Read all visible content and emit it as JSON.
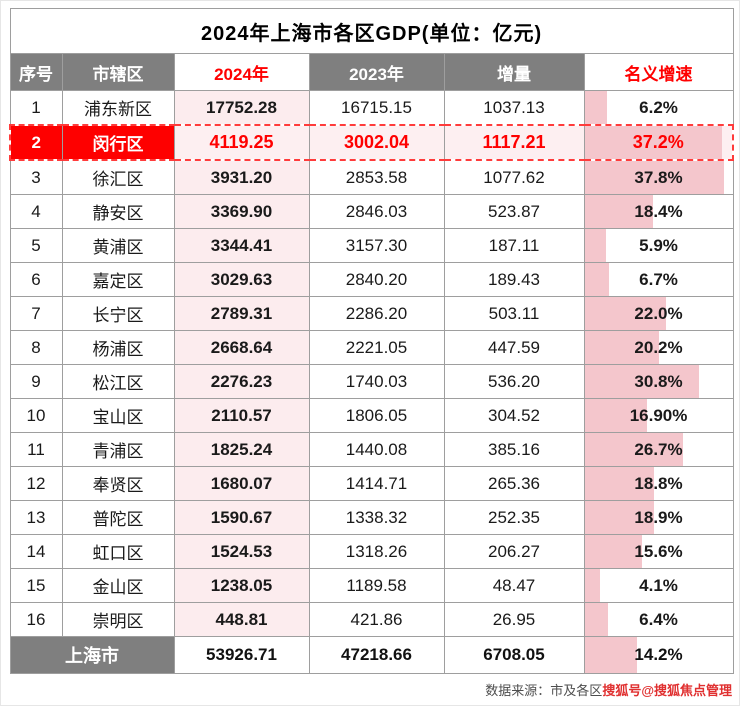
{
  "chart_data": {
    "type": "table",
    "title": "2024年上海市各区GDP(单位：亿元)",
    "columns": [
      "序号",
      "市辖区",
      "2024年",
      "2023年",
      "增量",
      "名义增速"
    ],
    "growth_axis_max": 40,
    "rows": [
      {
        "no": "1",
        "district": "浦东新区",
        "y2024": "17752.28",
        "y2023": "16715.15",
        "delta": "1037.13",
        "growth": "6.2%",
        "growth_value": 6.2,
        "highlight": false
      },
      {
        "no": "2",
        "district": "闵行区",
        "y2024": "4119.25",
        "y2023": "3002.04",
        "delta": "1117.21",
        "growth": "37.2%",
        "growth_value": 37.2,
        "highlight": true
      },
      {
        "no": "3",
        "district": "徐汇区",
        "y2024": "3931.20",
        "y2023": "2853.58",
        "delta": "1077.62",
        "growth": "37.8%",
        "growth_value": 37.8,
        "highlight": false
      },
      {
        "no": "4",
        "district": "静安区",
        "y2024": "3369.90",
        "y2023": "2846.03",
        "delta": "523.87",
        "growth": "18.4%",
        "growth_value": 18.4,
        "highlight": false
      },
      {
        "no": "5",
        "district": "黄浦区",
        "y2024": "3344.41",
        "y2023": "3157.30",
        "delta": "187.11",
        "growth": "5.9%",
        "growth_value": 5.9,
        "highlight": false
      },
      {
        "no": "6",
        "district": "嘉定区",
        "y2024": "3029.63",
        "y2023": "2840.20",
        "delta": "189.43",
        "growth": "6.7%",
        "growth_value": 6.7,
        "highlight": false
      },
      {
        "no": "7",
        "district": "长宁区",
        "y2024": "2789.31",
        "y2023": "2286.20",
        "delta": "503.11",
        "growth": "22.0%",
        "growth_value": 22.0,
        "highlight": false
      },
      {
        "no": "8",
        "district": "杨浦区",
        "y2024": "2668.64",
        "y2023": "2221.05",
        "delta": "447.59",
        "growth": "20.2%",
        "growth_value": 20.2,
        "highlight": false
      },
      {
        "no": "9",
        "district": "松江区",
        "y2024": "2276.23",
        "y2023": "1740.03",
        "delta": "536.20",
        "growth": "30.8%",
        "growth_value": 30.8,
        "highlight": false
      },
      {
        "no": "10",
        "district": "宝山区",
        "y2024": "2110.57",
        "y2023": "1806.05",
        "delta": "304.52",
        "growth": "16.90%",
        "growth_value": 16.9,
        "highlight": false
      },
      {
        "no": "11",
        "district": "青浦区",
        "y2024": "1825.24",
        "y2023": "1440.08",
        "delta": "385.16",
        "growth": "26.7%",
        "growth_value": 26.7,
        "highlight": false
      },
      {
        "no": "12",
        "district": "奉贤区",
        "y2024": "1680.07",
        "y2023": "1414.71",
        "delta": "265.36",
        "growth": "18.8%",
        "growth_value": 18.8,
        "highlight": false
      },
      {
        "no": "13",
        "district": "普陀区",
        "y2024": "1590.67",
        "y2023": "1338.32",
        "delta": "252.35",
        "growth": "18.9%",
        "growth_value": 18.9,
        "highlight": false
      },
      {
        "no": "14",
        "district": "虹口区",
        "y2024": "1524.53",
        "y2023": "1318.26",
        "delta": "206.27",
        "growth": "15.6%",
        "growth_value": 15.6,
        "highlight": false
      },
      {
        "no": "15",
        "district": "金山区",
        "y2024": "1238.05",
        "y2023": "1189.58",
        "delta": "48.47",
        "growth": "4.1%",
        "growth_value": 4.1,
        "highlight": false
      },
      {
        "no": "16",
        "district": "崇明区",
        "y2024": "448.81",
        "y2023": "421.86",
        "delta": "26.95",
        "growth": "6.4%",
        "growth_value": 6.4,
        "highlight": false
      }
    ],
    "total": {
      "label": "上海市",
      "y2024": "53926.71",
      "y2023": "47218.66",
      "delta": "6708.05",
      "growth": "14.2%",
      "growth_value": 14.2
    }
  },
  "source": {
    "prefix": "数据来源：市及各区",
    "watermark": "搜狐号@搜狐焦点管理"
  },
  "colors": {
    "accent_red": "#ff0000",
    "header_gray": "#7f7f7f",
    "column_pink": "#fcecee",
    "bar_pink": "#f4c6cc",
    "highlight_row_red": "#fe0000"
  }
}
